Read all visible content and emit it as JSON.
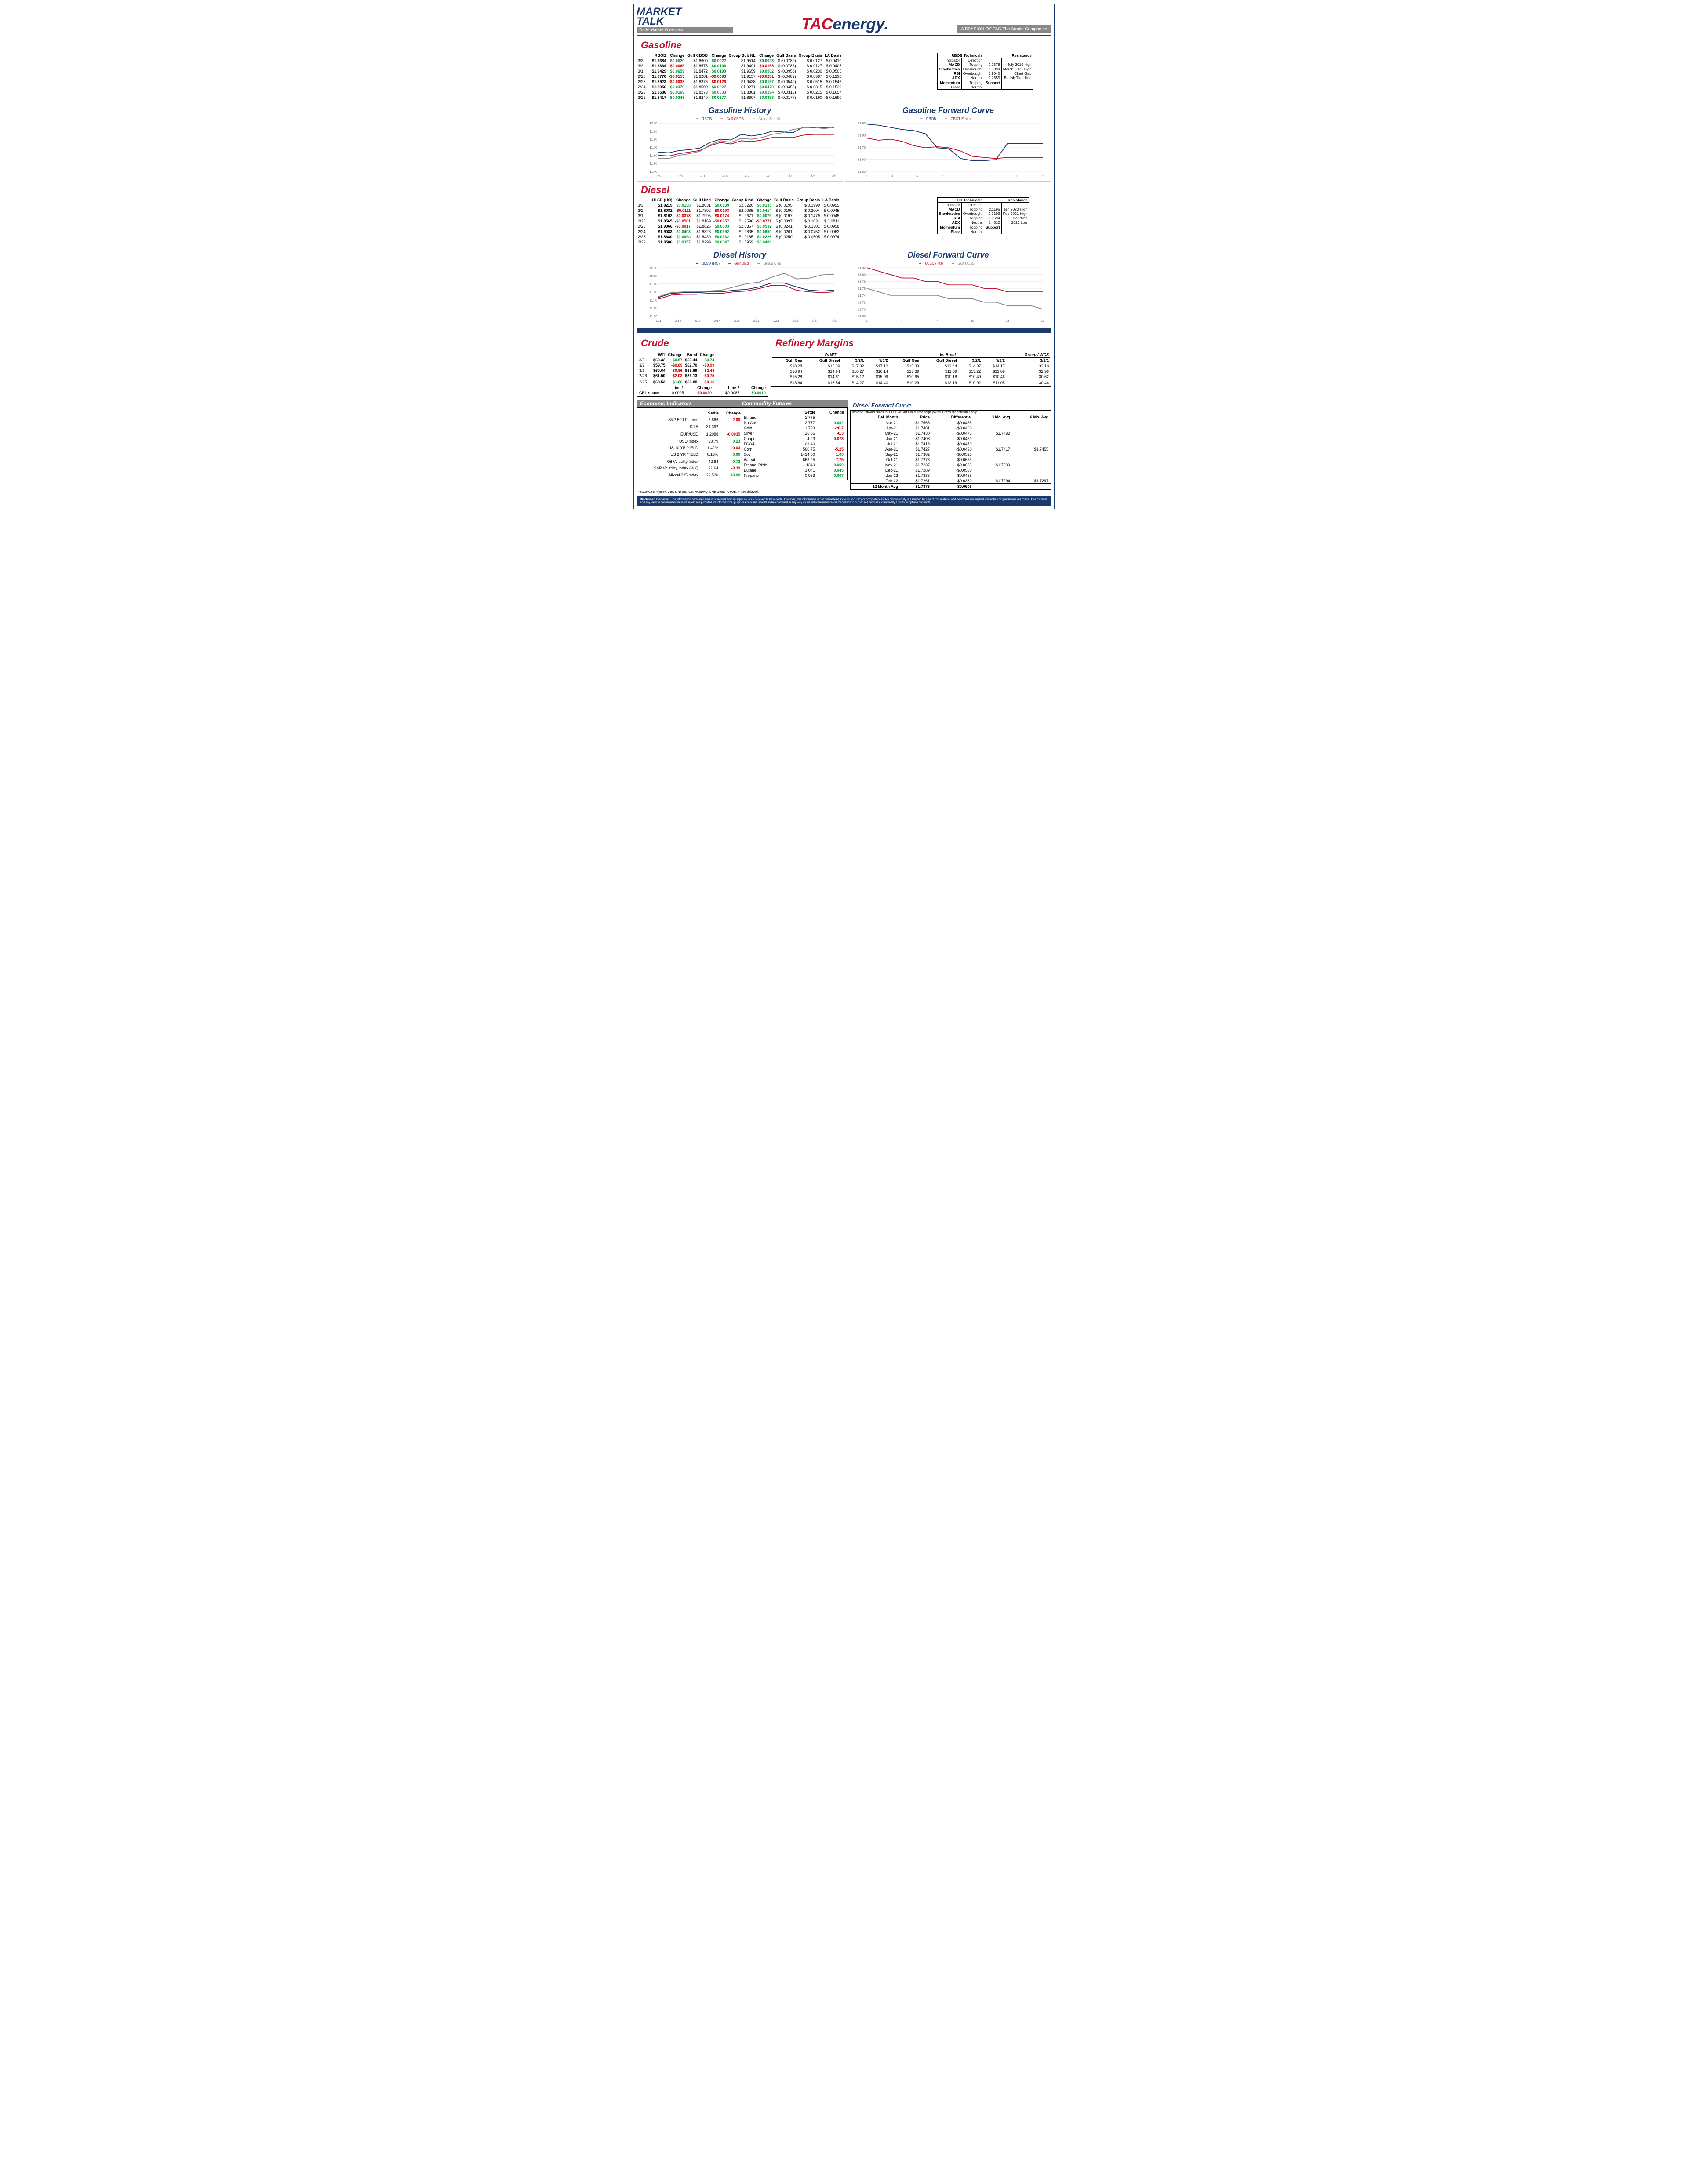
{
  "header": {
    "logo1_line1": "MARKET",
    "logo1_line2": "TALK",
    "subtitle": "Daily Market Overview",
    "tac": "TAC",
    "energy": "energy.",
    "division": "A DIVISION OF TAC The Arnold Companies"
  },
  "gasoline": {
    "title": "Gasoline",
    "headers": [
      "",
      "RBOB",
      "Change",
      "Gulf CBOB",
      "Change",
      "Group Sub NL",
      "Change",
      "Gulf Basis",
      "Group Basis",
      "LA Basis"
    ],
    "rows": [
      [
        "3/3",
        "$1.9384",
        "$0.0020",
        "$1.8600",
        "$0.0022",
        "$1.9514",
        "$0.0023",
        "$ (0.0789)",
        "$     0.0127",
        "$   0.0410"
      ],
      [
        "3/2",
        "$1.9364",
        "-$0.0065",
        "$1.8578",
        "$0.0106",
        "$1.9491",
        "-$0.0168",
        "$ (0.0786)",
        "$     0.0127",
        "$   0.0405"
      ],
      [
        "3/1",
        "$1.9429",
        "$0.0659",
        "$1.8472",
        "$0.0190",
        "$1.9659",
        "$0.0502",
        "$ (0.0958)",
        "$     0.0230",
        "$   0.0505"
      ],
      [
        "2/26",
        "$1.8770",
        "-$0.0153",
        "$1.8281",
        "-$0.0093",
        "$1.9157",
        "-$0.0281",
        "$ (0.0489)",
        "$     0.0387",
        "$   0.1290"
      ],
      [
        "2/25",
        "$1.8923",
        "-$0.0033",
        "$1.8375",
        "-$0.0126",
        "$1.9438",
        "$0.0167",
        "$ (0.0549)",
        "$     0.0515",
        "$   0.1546"
      ],
      [
        "2/24",
        "$1.8956",
        "$0.0370",
        "$1.8500",
        "$0.0227",
        "$1.9271",
        "$0.0470",
        "$ (0.0456)",
        "$     0.0315",
        "$   0.1539"
      ],
      [
        "2/23",
        "$1.8586",
        "$0.0169",
        "$1.8273",
        "$0.0033",
        "$1.8801",
        "$0.0194",
        "$ (0.0313)",
        "$     0.0215",
        "$   0.1657"
      ],
      [
        "2/22",
        "$1.8417",
        "$0.0348",
        "$1.8240",
        "$0.0277",
        "$1.8607",
        "$0.0398",
        "$ (0.0177)",
        "$     0.0190",
        "$   0.1690"
      ]
    ],
    "tech_title": "RBOB Technicals",
    "tech_headers": [
      "Indicator",
      "Direction"
    ],
    "tech_rows": [
      [
        "MACD",
        "Topping"
      ],
      [
        "Stochastics",
        "Overbought"
      ],
      [
        "RSI",
        "Overbought"
      ],
      [
        "ADX",
        "Neutral"
      ],
      [
        "Momentum",
        "Topping"
      ],
      [
        "Bias:",
        "Neutral"
      ]
    ],
    "res_title": "Resistance",
    "res_rows": [
      [
        "2.0378",
        "July 2019 high"
      ],
      [
        "1.9890",
        "March 2021 High"
      ],
      [
        "1.9040",
        "Chart Gap"
      ],
      [
        "1.7855",
        "Bullish Trendline"
      ]
    ],
    "sup_title": "Support",
    "hist_title": "Gasoline History",
    "fwd_title": "Gasoline Forward Curve",
    "hist_legend": [
      "RBOB",
      "Gulf CBOB",
      "Group Sub NL"
    ],
    "fwd_legend": [
      "RBOB",
      "CBOT Ethanol"
    ],
    "hist_x": [
      "2/5",
      "2/8",
      "2/11",
      "2/14",
      "2/17",
      "2/20",
      "2/23",
      "2/26",
      "3/1"
    ],
    "hist_y": [
      "$1.40",
      "$1.50",
      "$1.60",
      "$1.70",
      "$1.80",
      "$1.90",
      "$2.00"
    ],
    "fwd_x": [
      "1",
      "3",
      "5",
      "7",
      "9",
      "11",
      "13",
      "15"
    ],
    "fwd_y": [
      "$1.50",
      "$1.60",
      "$1.70",
      "$1.80",
      "$1.90"
    ],
    "hist_chart": {
      "rbob": [
        1.64,
        1.63,
        1.66,
        1.67,
        1.69,
        1.76,
        1.8,
        1.79,
        1.86,
        1.84,
        1.86,
        1.9,
        1.89,
        1.88,
        1.95,
        1.94,
        1.94,
        1.94
      ],
      "gulf": [
        1.6,
        1.59,
        1.62,
        1.64,
        1.66,
        1.72,
        1.76,
        1.74,
        1.78,
        1.77,
        1.79,
        1.82,
        1.82,
        1.82,
        1.85,
        1.86,
        1.86,
        1.86
      ],
      "group": [
        1.56,
        1.56,
        1.6,
        1.62,
        1.65,
        1.73,
        1.78,
        1.76,
        1.81,
        1.8,
        1.82,
        1.86,
        1.88,
        1.92,
        1.94,
        1.95,
        1.93,
        1.95
      ]
    },
    "fwd_chart": {
      "rbob": [
        1.94,
        1.93,
        1.91,
        1.89,
        1.88,
        1.85,
        1.72,
        1.71,
        1.62,
        1.6,
        1.6,
        1.61,
        1.76,
        1.76,
        1.76,
        1.76
      ],
      "ethanol": [
        1.81,
        1.79,
        1.8,
        1.78,
        1.74,
        1.72,
        1.73,
        1.72,
        1.69,
        1.64,
        1.63,
        1.62,
        1.63,
        1.63,
        1.63,
        1.63
      ]
    }
  },
  "diesel": {
    "title": "Diesel",
    "headers": [
      "",
      "ULSD (HO)",
      "Change",
      "Gulf Ulsd",
      "Change",
      "Group Ulsd",
      "Change",
      "Gulf Basis",
      "Group Basis",
      "LA Basis"
    ],
    "rows": [
      [
        "3/3",
        "$1.8219",
        "$0.0138",
        "$1.8031",
        "$0.0139",
        "$2.0220",
        "$0.0135",
        "$ (0.0195)",
        "$     0.1999",
        "$   0.0955"
      ],
      [
        "3/2",
        "$1.8081",
        "-$0.0111",
        "$1.7892",
        "-$0.0103",
        "$2.0085",
        "$0.0414",
        "$ (0.0190)",
        "$     0.2004",
        "$   0.0945"
      ],
      [
        "3/1",
        "$1.8192",
        "-$0.0373",
        "$1.7995",
        "-$0.0174",
        "$1.9671",
        "$0.0075",
        "$ (0.0197)",
        "$     0.1479",
        "$   0.0945"
      ],
      [
        "2/26",
        "$1.8565",
        "-$0.0501",
        "$1.8169",
        "-$0.0657",
        "$1.9596",
        "-$0.0771",
        "$ (0.0397)",
        "$     0.1031",
        "$   0.0811"
      ],
      [
        "2/25",
        "$1.9066",
        "-$0.0017",
        "$1.8826",
        "$0.0003",
        "$2.0367",
        "$0.0532",
        "$ (0.0241)",
        "$     0.1301",
        "$   0.0958"
      ],
      [
        "2/24",
        "$1.9083",
        "$0.0403",
        "$1.8823",
        "$0.0392",
        "$1.9835",
        "$0.0650",
        "$ (0.0261)",
        "$     0.0752",
        "$   0.0962"
      ],
      [
        "2/23",
        "$1.8680",
        "$0.0094",
        "$1.8430",
        "$0.0132",
        "$1.9185",
        "$0.0226",
        "$ (0.0250)",
        "$     0.0505",
        "$   0.0974"
      ],
      [
        "2/22",
        "$1.8586",
        "$0.0357",
        "$1.8299",
        "$0.0347",
        "$1.8959",
        "$0.0489",
        "",
        "",
        ""
      ]
    ],
    "tech_title": "HO Technicals",
    "tech_rows": [
      [
        "MACD",
        "Topping"
      ],
      [
        "Stochastics",
        "Overbought"
      ],
      [
        "RSI",
        "Topping"
      ],
      [
        "ADX",
        "Neutral"
      ],
      [
        "Momentum",
        "Topping"
      ],
      [
        "Bias:",
        "Neutral"
      ]
    ],
    "res_rows": [
      [
        "2.1195",
        "Jan 2020 High"
      ],
      [
        "1.9193",
        "Feb 2021 High"
      ],
      [
        "1.6694",
        "Trendline"
      ],
      [
        "1.4512",
        "2021 Low"
      ]
    ],
    "hist_title": "Diesel History",
    "fwd_title": "Diesel Forward Curve",
    "hist_legend": [
      "ULSD (HO)",
      "Gulf Ulsd",
      "Group Ulsd"
    ],
    "fwd_legend": [
      "ULSD (HO)",
      "Gulf ULSD"
    ],
    "hist_x": [
      "2/11",
      "2/13",
      "2/15",
      "2/17",
      "2/19",
      "2/21",
      "2/23",
      "2/25",
      "2/27",
      "3/1"
    ],
    "hist_y": [
      "$1.50",
      "$1.60",
      "$1.70",
      "$1.80",
      "$1.90",
      "$2.00",
      "$2.10"
    ],
    "fwd_x": [
      "1",
      "4",
      "7",
      "10",
      "13",
      "16"
    ],
    "fwd_y": [
      "$1.68",
      "$1.70",
      "$1.72",
      "$1.74",
      "$1.76",
      "$1.78",
      "$1.80",
      "$1.82"
    ],
    "hist_chart": {
      "ulsd": [
        1.73,
        1.78,
        1.79,
        1.79,
        1.8,
        1.8,
        1.82,
        1.83,
        1.86,
        1.91,
        1.91,
        1.86,
        1.82,
        1.81,
        1.82
      ],
      "gulf": [
        1.71,
        1.76,
        1.77,
        1.77,
        1.78,
        1.78,
        1.8,
        1.81,
        1.84,
        1.88,
        1.88,
        1.82,
        1.8,
        1.79,
        1.8
      ],
      "group": [
        1.74,
        1.79,
        1.8,
        1.8,
        1.81,
        1.82,
        1.86,
        1.9,
        1.92,
        1.98,
        2.03,
        1.96,
        1.97,
        2.01,
        2.02
      ]
    },
    "fwd_chart": {
      "ulsd": [
        1.82,
        1.81,
        1.8,
        1.79,
        1.79,
        1.78,
        1.78,
        1.77,
        1.77,
        1.77,
        1.76,
        1.76,
        1.75,
        1.75,
        1.75,
        1.75
      ],
      "gulf": [
        1.76,
        1.75,
        1.74,
        1.74,
        1.74,
        1.74,
        1.74,
        1.73,
        1.73,
        1.73,
        1.72,
        1.72,
        1.71,
        1.71,
        1.71,
        1.7
      ]
    }
  },
  "crude": {
    "title": "Crude",
    "headers": [
      "",
      "WTI",
      "Change",
      "Brent",
      "Change"
    ],
    "rows": [
      [
        "3/3",
        "$60.32",
        "$0.57",
        "$63.44",
        "$0.74"
      ],
      [
        "3/2",
        "$59.75",
        "-$0.89",
        "$62.70",
        "-$0.99"
      ],
      [
        "3/1",
        "$60.64",
        "-$0.86",
        "$63.69",
        "-$2.44"
      ],
      [
        "2/26",
        "$61.50",
        "-$2.03",
        "$66.13",
        "-$0.75"
      ],
      [
        "",
        "",
        "",
        "",
        ""
      ],
      [
        "2/25",
        "$63.53",
        "$1.86",
        "$66.88",
        "-$0.16"
      ]
    ],
    "cpl_label": "CPL space",
    "cpl_headers": [
      "Line 1",
      "Change",
      "Line 2",
      "Change"
    ],
    "cpl_row": [
      "-0.0095",
      "-$0.0020",
      "-$0.0085",
      "$0.0010"
    ]
  },
  "refinery": {
    "title": "Refinery Margins",
    "wti_label": "Vs WTI",
    "brent_label": "Vs Brent",
    "group_label": "Group / WCS",
    "headers": [
      "Gulf Gas",
      "Gulf Diesel",
      "3/2/1",
      "5/3/2",
      "Gulf Gas",
      "Gulf Diesel",
      "3/2/1",
      "5/3/2",
      "3/2/1"
    ],
    "rows": [
      [
        "$18.28",
        "$15.39",
        "$17.32",
        "$17.12",
        "$15.33",
        "$12.44",
        "$14.37",
        "$14.17",
        "33.10"
      ],
      [
        "$16.94",
        "$14.94",
        "$16.27",
        "$16.14",
        "$13.89",
        "$11.89",
        "$13.22",
        "$13.09",
        "32.99"
      ],
      [
        "$15.28",
        "$14.81",
        "$15.12",
        "$15.09",
        "$10.65",
        "$10.18",
        "$10.49",
        "$10.46",
        "30.62"
      ],
      [
        "",
        "",
        "",
        "",
        "",
        "",
        "",
        "",
        ""
      ],
      [
        "$13.64",
        "$15.54",
        "$14.27",
        "$14.40",
        "$10.29",
        "$12.19",
        "$10.92",
        "$11.05",
        "30.46"
      ]
    ]
  },
  "diesel_fwd": {
    "title": "Diesel Forward Curve",
    "note": "Indictive forward prices for ULSD at Gulf Coast area origin points.  Prices are estimates only.",
    "headers": [
      "Del. Month",
      "Price",
      "Differential",
      "3 Mo. Avg",
      "6 Mo. Avg"
    ],
    "rows": [
      [
        "Mar-21",
        "$1.7565",
        "-$0.0435",
        "",
        ""
      ],
      [
        "Apr-21",
        "$1.7481",
        "-$0.0460",
        "",
        ""
      ],
      [
        "May-21",
        "$1.7430",
        "-$0.0475",
        "$1.7492",
        ""
      ],
      [
        "Jun-21",
        "$1.7408",
        "-$0.0480",
        "",
        ""
      ],
      [
        "Jul-21",
        "$1.7416",
        "-$0.0470",
        "",
        ""
      ],
      [
        "Aug-21",
        "$1.7427",
        "-$0.0490",
        "$1.7417",
        "$1.7455"
      ],
      [
        "Sep-21",
        "$1.7382",
        "-$0.0525",
        "",
        ""
      ],
      [
        "Oct-21",
        "$1.7278",
        "-$0.0635",
        "",
        ""
      ],
      [
        "Nov-21",
        "$1.7237",
        "-$0.0685",
        "$1.7299",
        ""
      ],
      [
        "Dec-21",
        "$1.7289",
        "-$0.0580",
        "",
        ""
      ],
      [
        "Jan-22",
        "$1.7333",
        "-$0.0455",
        "",
        ""
      ],
      [
        "Feb-22",
        "$1.7261",
        "-$0.0380",
        "$1.7294",
        "$1.7297"
      ]
    ],
    "avg_row": [
      "12 Month Avg",
      "$1.7376",
      "-$0.0506",
      "",
      ""
    ]
  },
  "econ": {
    "title1": "Economic Indicators",
    "title2": "Commodity Futures",
    "left_headers": [
      "",
      "Settle",
      "Change"
    ],
    "left_rows": [
      [
        "S&P 500 Futures",
        "3,866",
        "-2.00"
      ],
      [
        "DJIA",
        "31,392",
        ""
      ],
      [
        "",
        "",
        ""
      ],
      [
        "EUR/USD",
        "1.2088",
        "-0.0035"
      ],
      [
        "USD Index",
        "90.79",
        "0.23"
      ],
      [
        "US 10 YR YIELD",
        "1.42%",
        "-0.03"
      ],
      [
        "US 2 YR YIELD",
        "0.13%",
        "0.00"
      ],
      [
        "Oil Volatility Index",
        "42.84",
        "0.72"
      ],
      [
        "S&P Volatility Index (VIX)",
        "21.64",
        "-0.39"
      ],
      [
        "Nikkei 225 Index",
        "29,520",
        "40.00"
      ]
    ],
    "right_rows": [
      [
        "Ethanol",
        "1.775",
        ""
      ],
      [
        "NatGas",
        "2.777",
        "0.062"
      ],
      [
        "Gold",
        "1,733",
        "-20.7"
      ],
      [
        "Silver",
        "26.85",
        "-0.3"
      ],
      [
        "Copper",
        "4.23",
        "-0.073"
      ],
      [
        "FCOJ",
        "109.40",
        ""
      ],
      [
        "Corn",
        "560.75",
        "-5.25"
      ],
      [
        "Soy",
        "1414.00",
        "1.00"
      ],
      [
        "Wheat",
        "663.25",
        "-7.75"
      ],
      [
        "Ethanol RINs",
        "1.1340",
        "0.050"
      ],
      [
        "Butane",
        "1.041",
        "0.045"
      ],
      [
        "Propane",
        "0.963",
        "0.007"
      ]
    ]
  },
  "sources": "*SOURCES: Nymex, CBOT, NYSE, ICE, NASDAQ, CME Group, CBOE.   Prices delayed.",
  "disclaimer": "Disclaimer: The information contained herein is derived from multiple sources believed to be reliable.  However, this information is not guaranteed as to its accuracy or completeness. No responsibility is assumed for use of this material and no express or implied warranties or guarantees are made. This material and any view or comment expressed herein are provided for informational purposes only and should notbe construed in any way as an inducement or recommendation to buy or sell products, commodity futures or options contracts"
}
